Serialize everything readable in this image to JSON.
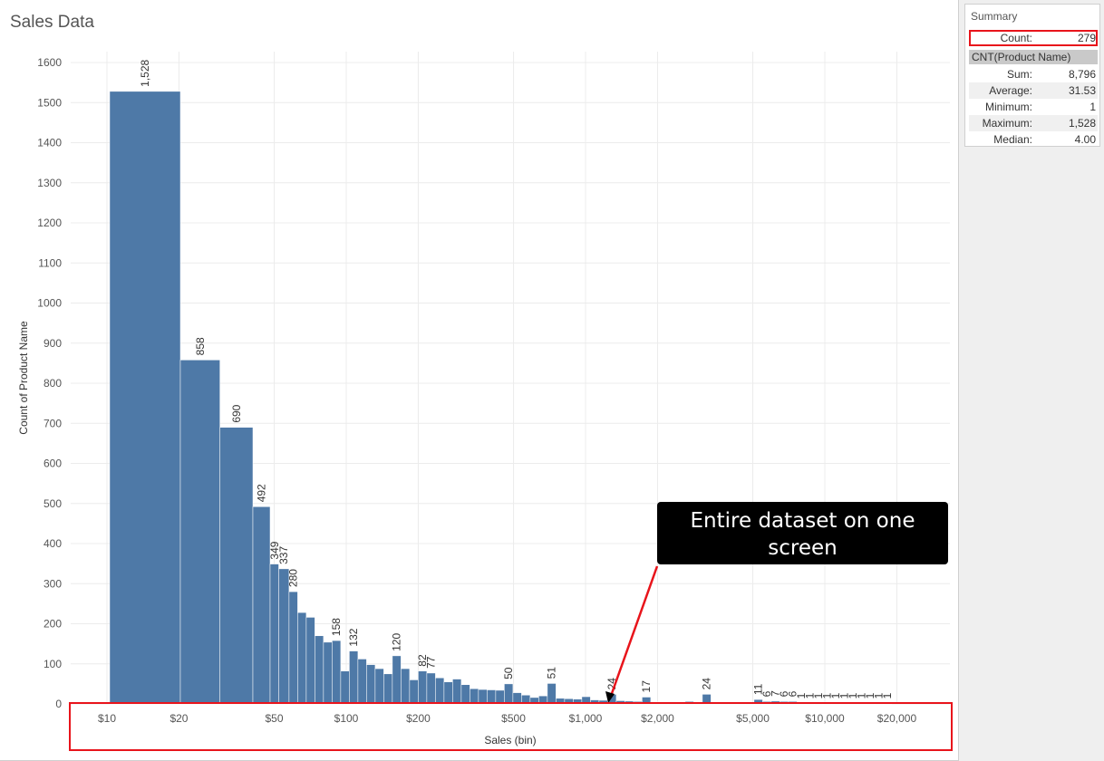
{
  "sheet": {
    "title": "Sales Data"
  },
  "summary": {
    "title": "Summary",
    "count_label": "Count:",
    "count_value": "279",
    "measure": "CNT(Product Name)",
    "rows": [
      {
        "label": "Sum:",
        "value": "8,796"
      },
      {
        "label": "Average:",
        "value": "31.53"
      },
      {
        "label": "Minimum:",
        "value": "1"
      },
      {
        "label": "Maximum:",
        "value": "1,528"
      },
      {
        "label": "Median:",
        "value": "4.00"
      }
    ]
  },
  "callout": {
    "text": "Entire dataset on one screen"
  },
  "colors": {
    "bar": "#4e79a7",
    "highlight": "#e8141b",
    "callout_bg": "#000000"
  },
  "chart_data": {
    "type": "bar",
    "title": "",
    "xlabel": "Sales (bin)",
    "ylabel": "Count of Product Name",
    "x_scale": "log",
    "ylim": [
      0,
      1600
    ],
    "y_ticks": [
      "0",
      "100",
      "200",
      "300",
      "400",
      "500",
      "600",
      "700",
      "800",
      "900",
      "1000",
      "1100",
      "1200",
      "1300",
      "1400",
      "1500",
      "1600"
    ],
    "x_ticks": [
      {
        "value": 10,
        "label": "$10"
      },
      {
        "value": 20,
        "label": "$20"
      },
      {
        "value": 50,
        "label": "$50"
      },
      {
        "value": 100,
        "label": "$100"
      },
      {
        "value": 200,
        "label": "$200"
      },
      {
        "value": 500,
        "label": "$500"
      },
      {
        "value": 1000,
        "label": "$1,000"
      },
      {
        "value": 2000,
        "label": "$2,000"
      },
      {
        "value": 5000,
        "label": "$5,000"
      },
      {
        "value": 10000,
        "label": "$10,000"
      },
      {
        "value": 20000,
        "label": "$20,000"
      }
    ],
    "grid": true,
    "bins": [
      {
        "x": 12.5,
        "w": 7.5,
        "value": 1528,
        "label": "1,528"
      },
      {
        "x": 20,
        "w": 6,
        "value": 858,
        "label": "858"
      },
      {
        "x": 26,
        "w": 5,
        "value": 690,
        "label": "690"
      },
      {
        "x": 31,
        "w": 10,
        "value": 492,
        "label": "492"
      },
      {
        "x": 41,
        "w": 5,
        "value": 349,
        "label": "349"
      },
      {
        "x": 46,
        "w": 6,
        "value": 337,
        "label": "337"
      },
      {
        "x": 52,
        "w": 5,
        "value": 280,
        "label": "280"
      },
      {
        "x": 57,
        "w": 5,
        "value": 228
      },
      {
        "x": 62,
        "w": 5,
        "value": 216
      },
      {
        "x": 67,
        "w": 5,
        "value": 170
      },
      {
        "x": 72,
        "w": 5,
        "value": 154
      },
      {
        "x": 77,
        "w": 5,
        "value": 158,
        "label": "158"
      },
      {
        "x": 82,
        "w": 5,
        "value": 82
      },
      {
        "x": 87,
        "w": 5,
        "value": 132,
        "label": "132"
      },
      {
        "x": 92,
        "w": 5,
        "value": 112
      },
      {
        "x": 97,
        "w": 5,
        "value": 98
      },
      {
        "x": 102,
        "w": 5,
        "value": 88
      },
      {
        "x": 107,
        "w": 5,
        "value": 75
      },
      {
        "x": 112,
        "w": 5,
        "value": 120,
        "label": "120"
      },
      {
        "x": 117,
        "w": 5,
        "value": 88
      },
      {
        "x": 122,
        "w": 5,
        "value": 60
      },
      {
        "x": 127,
        "w": 5,
        "value": 82,
        "label": "82"
      },
      {
        "x": 132,
        "w": 5,
        "value": 77,
        "label": "77"
      },
      {
        "x": 137,
        "w": 5,
        "value": 65
      },
      {
        "x": 142,
        "w": 5,
        "value": 55
      },
      {
        "x": 147,
        "w": 5,
        "value": 62
      },
      {
        "x": 152,
        "w": 5,
        "value": 48
      },
      {
        "x": 157,
        "w": 5,
        "value": 38
      },
      {
        "x": 162,
        "w": 5,
        "value": 36
      },
      {
        "x": 167,
        "w": 5,
        "value": 35
      },
      {
        "x": 172,
        "w": 5,
        "value": 34
      },
      {
        "x": 177,
        "w": 5,
        "value": 50,
        "label": "50"
      },
      {
        "x": 182,
        "w": 5,
        "value": 28
      },
      {
        "x": 187,
        "w": 5,
        "value": 22
      },
      {
        "x": 192,
        "w": 5,
        "value": 16
      },
      {
        "x": 197,
        "w": 5,
        "value": 20
      },
      {
        "x": 202,
        "w": 5,
        "value": 51,
        "label": "51"
      },
      {
        "x": 207,
        "w": 5,
        "value": 14
      },
      {
        "x": 212,
        "w": 5,
        "value": 13
      },
      {
        "x": 217,
        "w": 5,
        "value": 12
      },
      {
        "x": 222,
        "w": 5,
        "value": 18
      },
      {
        "x": 227,
        "w": 5,
        "value": 10
      },
      {
        "x": 232,
        "w": 5,
        "value": 9
      },
      {
        "x": 237,
        "w": 5,
        "value": 24,
        "label": "24"
      },
      {
        "x": 242,
        "w": 5,
        "value": 8
      },
      {
        "x": 247,
        "w": 5,
        "value": 7
      },
      {
        "x": 252,
        "w": 5,
        "value": 6
      },
      {
        "x": 257,
        "w": 5,
        "value": 17,
        "label": "17"
      },
      {
        "x": 262,
        "w": 5,
        "value": 5
      },
      {
        "x": 267,
        "w": 5,
        "value": 4
      },
      {
        "x": 272,
        "w": 5,
        "value": 5
      },
      {
        "x": 277,
        "w": 5,
        "value": 4
      },
      {
        "x": 282,
        "w": 5,
        "value": 6
      },
      {
        "x": 287,
        "w": 5,
        "value": 3
      },
      {
        "x": 292,
        "w": 5,
        "value": 24,
        "label": "24"
      },
      {
        "x": 297,
        "w": 5,
        "value": 3
      },
      {
        "x": 302,
        "w": 5,
        "value": 2
      },
      {
        "x": 307,
        "w": 5,
        "value": 3
      },
      {
        "x": 312,
        "w": 5,
        "value": 2
      },
      {
        "x": 317,
        "w": 5,
        "value": 2
      },
      {
        "x": 322,
        "w": 5,
        "value": 11,
        "label": "11"
      },
      {
        "x": 327,
        "w": 5,
        "value": 6,
        "label": "6"
      },
      {
        "x": 332,
        "w": 5,
        "value": 7,
        "label": "7"
      },
      {
        "x": 337,
        "w": 5,
        "value": 6,
        "label": "6"
      },
      {
        "x": 342,
        "w": 5,
        "value": 6,
        "label": "6"
      },
      {
        "x": 347,
        "w": 5,
        "value": 1,
        "label": "1"
      },
      {
        "x": 352,
        "w": 5,
        "value": 1,
        "label": "1"
      },
      {
        "x": 357,
        "w": 5,
        "value": 1,
        "label": "1"
      },
      {
        "x": 362,
        "w": 5,
        "value": 1,
        "label": "1"
      },
      {
        "x": 367,
        "w": 5,
        "value": 1,
        "label": "1"
      },
      {
        "x": 372,
        "w": 5,
        "value": 1,
        "label": "1"
      },
      {
        "x": 377,
        "w": 5,
        "value": 1,
        "label": "1"
      },
      {
        "x": 382,
        "w": 5,
        "value": 1,
        "label": "1"
      },
      {
        "x": 387,
        "w": 5,
        "value": 1,
        "label": "1"
      },
      {
        "x": 392,
        "w": 5,
        "value": 1,
        "label": "1"
      },
      {
        "x": 397,
        "w": 5,
        "value": 1,
        "label": "1"
      }
    ]
  }
}
